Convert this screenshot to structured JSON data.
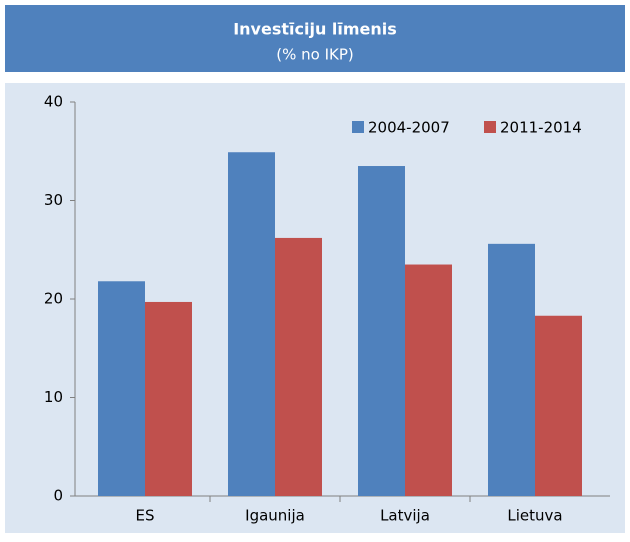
{
  "chart_data": {
    "type": "bar",
    "title": "Investīciju līmenis",
    "subtitle": "(% no IKP)",
    "categories": [
      "ES",
      "Igaunija",
      "Latvija",
      "Lietuva"
    ],
    "series": [
      {
        "name": "2004-2007",
        "color": "#4f81bd",
        "values": [
          21.8,
          34.9,
          33.5,
          25.6
        ]
      },
      {
        "name": "2011-2014",
        "color": "#c0504d",
        "values": [
          19.7,
          26.2,
          23.5,
          18.3
        ]
      }
    ],
    "ylim": [
      0,
      40
    ],
    "yticks": [
      0,
      10,
      20,
      30,
      40
    ],
    "grid": false,
    "legend": "top-right"
  }
}
